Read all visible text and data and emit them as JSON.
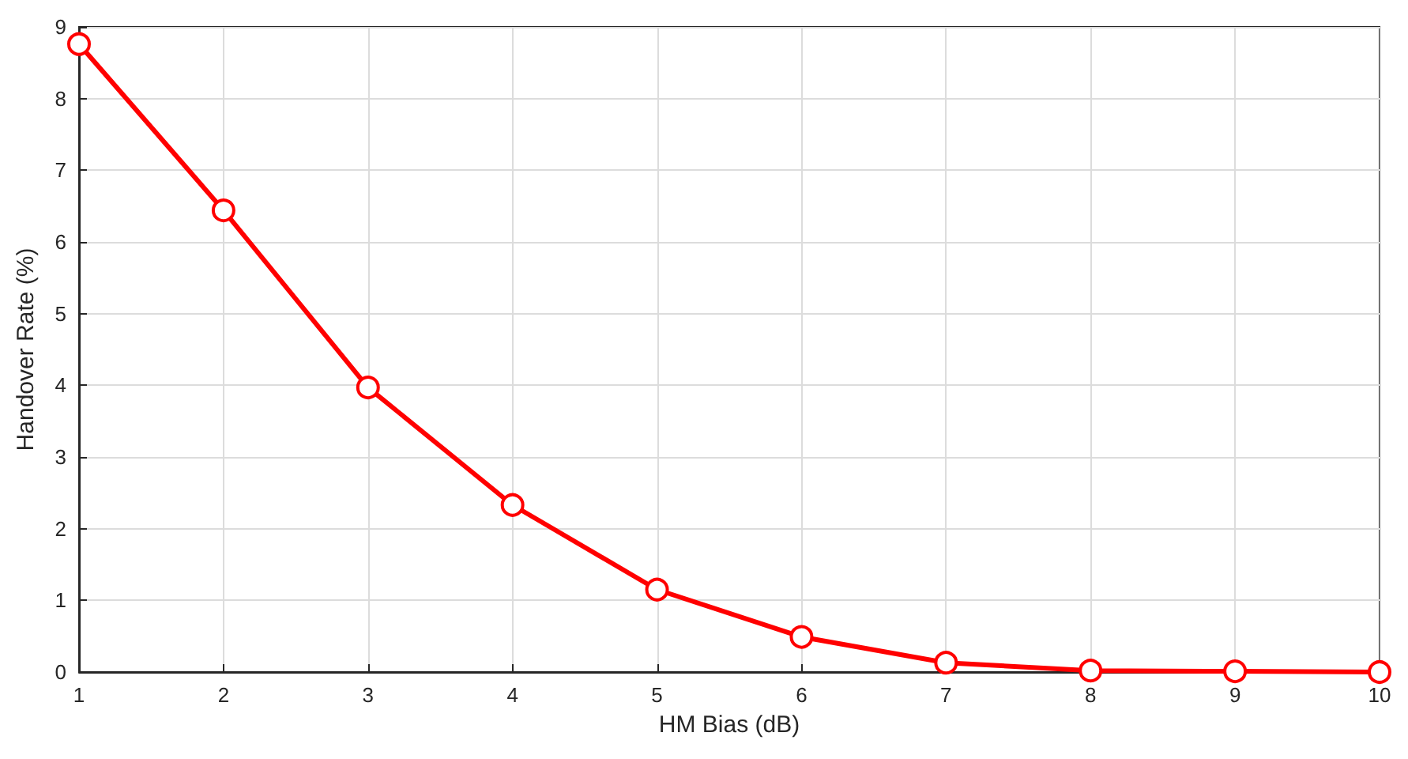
{
  "chart_data": {
    "type": "line",
    "xlabel": "HM Bias (dB)",
    "ylabel": "Handover Rate (%)",
    "x": [
      1,
      2,
      3,
      4,
      5,
      6,
      7,
      8,
      9,
      10
    ],
    "series": [
      {
        "color": "#ff0000",
        "values": [
          8.76,
          6.44,
          3.97,
          2.33,
          1.15,
          0.49,
          0.13,
          0.02,
          0.01,
          0.0
        ]
      }
    ],
    "xlim": [
      1,
      10
    ],
    "xticks": [
      1,
      2,
      3,
      4,
      5,
      6,
      7,
      8,
      9,
      10
    ],
    "ylim": [
      0,
      9
    ],
    "yticks": [
      0,
      1,
      2,
      3,
      4,
      5,
      6,
      7,
      8,
      9
    ],
    "grid": true,
    "marker": "circle",
    "line_style": "solid"
  }
}
